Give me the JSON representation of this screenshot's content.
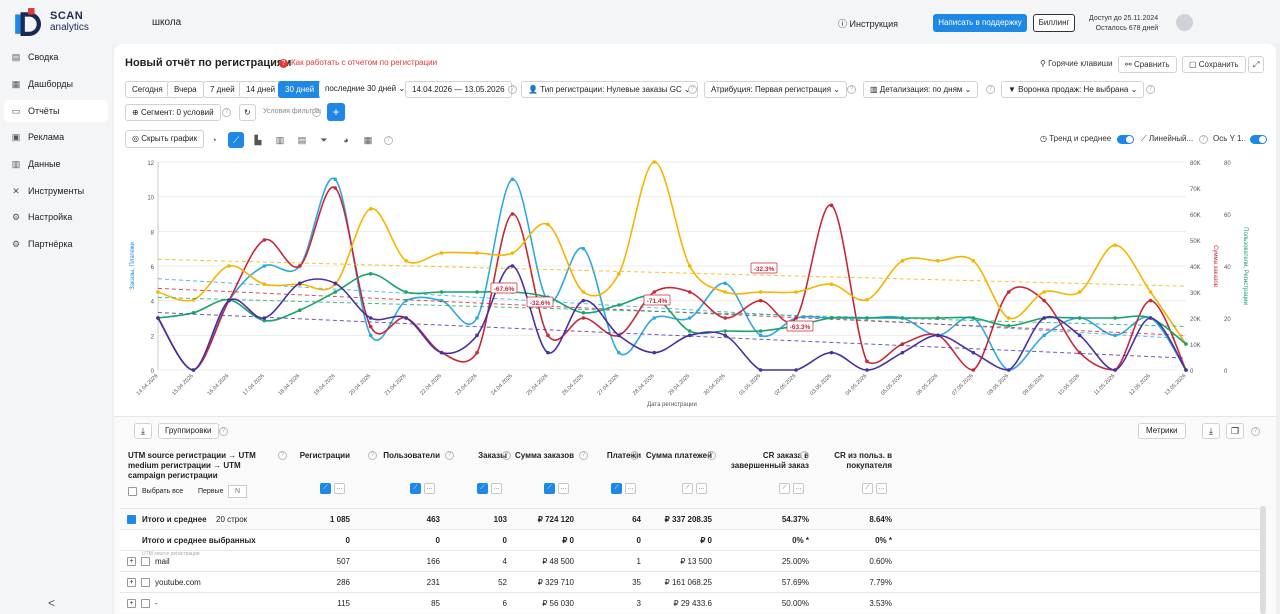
{
  "app": {
    "logo_line1": "SCAN",
    "logo_line2": "analytics",
    "project": "школа",
    "instruction": "Инструкция",
    "support": "Написать в поддержку",
    "billing": "Биллинг",
    "access_line1": "Доступ до 25.11.2024",
    "access_line2": "Осталось 678 дней"
  },
  "sidebar": {
    "items": [
      {
        "label": "Сводка",
        "icon": "summary-icon"
      },
      {
        "label": "Дашборды",
        "icon": "dashboard-icon"
      },
      {
        "label": "Отчёты",
        "icon": "report-icon"
      },
      {
        "label": "Реклама",
        "icon": "ads-icon"
      },
      {
        "label": "Данные",
        "icon": "data-icon"
      },
      {
        "label": "Инструменты",
        "icon": "tools-icon"
      },
      {
        "label": "Настройка",
        "icon": "settings-icon"
      },
      {
        "label": "Партнёрка",
        "icon": "partner-icon"
      }
    ],
    "active": 2,
    "collapse": "<"
  },
  "report": {
    "title": "Новый отчёт по регистрациям",
    "help": "Как работать с отчетом по регистрации",
    "hotkeys": "Горячие клавиши",
    "compare": "Сравнить",
    "save": "Сохранить"
  },
  "filters": {
    "periods": [
      "Сегодня",
      "Вчера",
      "7 дней",
      "14 дней",
      "30 дней"
    ],
    "selected_period": 4,
    "period_select": "последние 30 дней",
    "date_range": "14.04.2026  —  13.05.2026",
    "reg_type": "Тип регистрации: Нулевые заказы GC",
    "attribution": "Атрибуция: Первая регистрация",
    "detail": "Детализация:  по дням",
    "funnel": "Воронка продаж: Не выбрана",
    "segment": "Сегмент: 0 условий",
    "filter_label": "Условия фильтра:",
    "add": "+"
  },
  "toolbar": {
    "hide_chart": "Скрыть график",
    "trend": "Тренд и среднее",
    "linear": "Линейный...",
    "axis": "Ось Y  1.."
  },
  "chart_data": {
    "type": "line",
    "x": [
      "14.04.2026",
      "15.04.2026",
      "16.04.2026",
      "17.04.2026",
      "18.04.2026",
      "19.04.2026",
      "20.04.2026",
      "21.04.2026",
      "22.04.2026",
      "23.04.2026",
      "24.04.2026",
      "25.04.2026",
      "26.04.2026",
      "27.04.2026",
      "28.04.2026",
      "29.04.2026",
      "30.04.2026",
      "01.05.2026",
      "02.05.2026",
      "03.05.2026",
      "04.05.2026",
      "05.05.2026",
      "06.05.2026",
      "07.05.2026",
      "08.05.2026",
      "09.05.2026",
      "10.05.2026",
      "11.05.2026",
      "12.05.2026",
      "13.05.2026"
    ],
    "xlabel": "Дата регистрации",
    "y_left": {
      "label": "Заказы, Платежи",
      "ticks": [
        "0",
        "2",
        "4",
        "6",
        "8",
        "10",
        "12"
      ],
      "max": 12
    },
    "y_right1": {
      "label": "Сумма заказов",
      "ticks": [
        "0",
        "10K",
        "20K",
        "30K",
        "40K",
        "50K",
        "60K",
        "70K",
        "80K"
      ],
      "max": 80000
    },
    "y_right2": {
      "label": "Пользователи, Регистрации",
      "ticks": [
        "0",
        "20",
        "40",
        "60",
        "80"
      ],
      "max": 80
    },
    "series": [
      {
        "color": "#2ea8e0",
        "axis": "left",
        "values": [
          3,
          0,
          4,
          6,
          6,
          11,
          2,
          4,
          4,
          3,
          11,
          4,
          7,
          1,
          3,
          3,
          5,
          2,
          3,
          3,
          3,
          3,
          2,
          3,
          0,
          2,
          3,
          2,
          3,
          0
        ]
      },
      {
        "color": "#c62839",
        "axis": "left",
        "values": [
          3,
          0,
          4,
          7.5,
          6,
          10.5,
          2.5,
          3,
          1,
          1,
          9,
          2,
          3,
          2,
          4.5,
          4.5,
          3,
          4,
          3,
          9.5,
          0.5,
          1.5,
          2,
          0,
          4.5,
          4,
          1,
          0,
          4,
          0
        ]
      },
      {
        "color": "#f5b400",
        "axis": "right2",
        "values": [
          30,
          27,
          40,
          33,
          33,
          33,
          62,
          42,
          45,
          45,
          45,
          56,
          30,
          37,
          80,
          40,
          30,
          30,
          30,
          33,
          27,
          42,
          42,
          42,
          20,
          30,
          30,
          48,
          30,
          10
        ]
      },
      {
        "color": "#1aa36b",
        "axis": "right2",
        "values": [
          20,
          22,
          27,
          19,
          23,
          30,
          37,
          30,
          30,
          30,
          30,
          28,
          22,
          25,
          28,
          15,
          15,
          15,
          17,
          20,
          20,
          20,
          20,
          20,
          17,
          20,
          20,
          20,
          20,
          10
        ]
      },
      {
        "color": "#4a2fa0",
        "axis": "left",
        "values": [
          3,
          0,
          4,
          3,
          5,
          5,
          3,
          3,
          1,
          2,
          6,
          1,
          4,
          2,
          1,
          2,
          2,
          0,
          0,
          1,
          0,
          1,
          2,
          1,
          0,
          3,
          2,
          0,
          3,
          0
        ]
      }
    ],
    "annotations": [
      "-67.6%",
      "-32.6%",
      "-71.4%",
      "-32.3%",
      "-63.3%"
    ]
  },
  "table": {
    "groupings": "Группировки",
    "metrics": "Метрики",
    "dim_header": "UTM source регистрации → UTM medium регистрации → UTM campaign регистрации",
    "select_all": "Выбрать все",
    "first": "Первые",
    "first_placeholder": "N",
    "columns": [
      "Регистрации",
      "Пользователи",
      "Заказы",
      "Сумма заказов",
      "Платежи",
      "Сумма платежей",
      "CR заказа в завершенный заказ",
      "CR из польз. в покупателя"
    ],
    "total": {
      "label": "Итого и среднее",
      "count": "20 строк",
      "values": [
        "1 085",
        "463",
        "103",
        "₽ 724 120",
        "64",
        "₽ 337 208.35",
        "54.37%",
        "8.64%"
      ]
    },
    "selected_total": {
      "label": "Итого и среднее выбранных",
      "values": [
        "0",
        "0",
        "0",
        "₽ 0",
        "0",
        "₽ 0",
        "0% *",
        "0% *"
      ]
    },
    "rows_caption": "UTM source регистрации",
    "rows": [
      {
        "name": "mail",
        "values": [
          "507",
          "166",
          "4",
          "₽ 48 500",
          "1",
          "₽ 13 500",
          "25.00%",
          "0.60%"
        ]
      },
      {
        "name": "youtube.com",
        "values": [
          "286",
          "231",
          "52",
          "₽ 329 710",
          "35",
          "₽ 161 068.25",
          "57.69%",
          "7.79%"
        ]
      },
      {
        "name": "-",
        "values": [
          "115",
          "85",
          "6",
          "₽ 56 030",
          "3",
          "₽ 29 433.6",
          "50.00%",
          "3.53%"
        ]
      }
    ]
  }
}
